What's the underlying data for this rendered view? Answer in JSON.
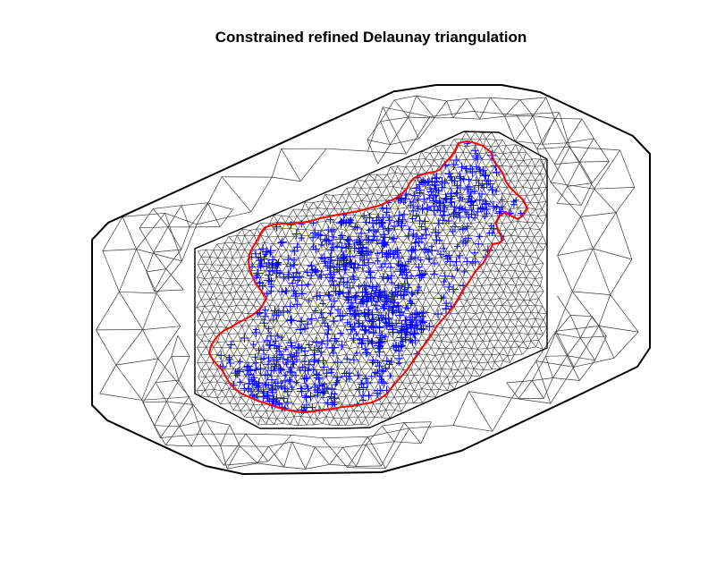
{
  "title": "Constrained refined Delaunay triangulation",
  "colors": {
    "background": "#ffffff",
    "mesh": "#3a3a3a",
    "hull": "#000000",
    "boundary": "#ff0000",
    "points": "#0000ff"
  },
  "legend": "none",
  "grid": false
}
